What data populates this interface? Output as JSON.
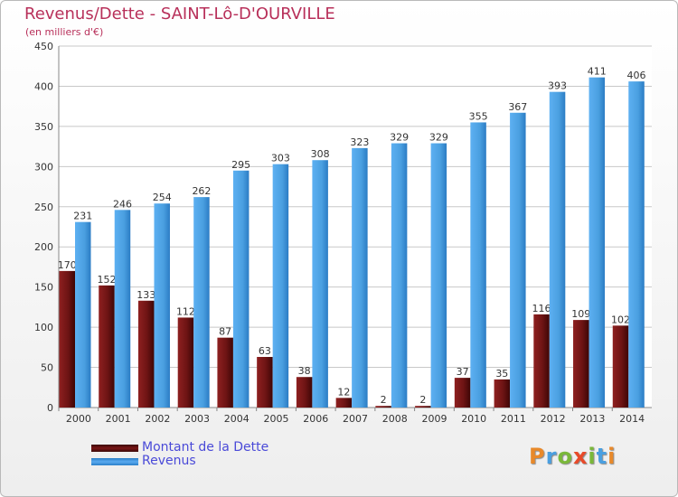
{
  "title": "Revenus/Dette - SAINT-Lô-D'OURVILLE",
  "subtitle": "(en milliers d'€)",
  "logo_text": "Proxiti",
  "colors": {
    "debt": "#7a1616",
    "revenue": "#4a9fe0",
    "title": "#b8305a",
    "legend_text": "#4a4ad8",
    "grid": "#c8c8c8"
  },
  "chart_data": {
    "type": "bar",
    "categories": [
      "2000",
      "2001",
      "2002",
      "2003",
      "2004",
      "2005",
      "2006",
      "2007",
      "2008",
      "2009",
      "2010",
      "2011",
      "2012",
      "2013",
      "2014"
    ],
    "series": [
      {
        "name": "Montant de la Dette",
        "values": [
          170,
          152,
          133,
          112,
          87,
          63,
          38,
          12,
          2,
          2,
          37,
          35,
          116,
          109,
          102
        ]
      },
      {
        "name": "Revenus",
        "values": [
          231,
          246,
          254,
          262,
          295,
          303,
          308,
          323,
          329,
          329,
          355,
          367,
          393,
          411,
          406
        ]
      }
    ],
    "yticks": [
      0,
      50,
      100,
      150,
      200,
      250,
      300,
      350,
      400,
      450
    ],
    "ylim": [
      0,
      450
    ],
    "grid": true,
    "legend_position": "bottom-left"
  }
}
